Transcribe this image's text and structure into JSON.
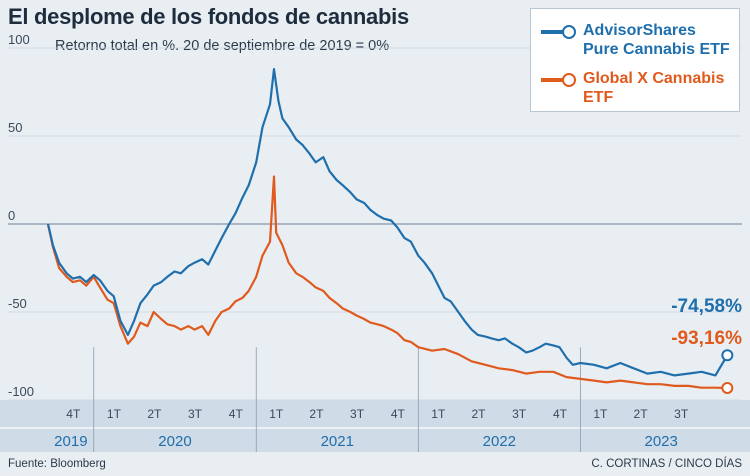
{
  "title": "El desplome de los fondos de cannabis",
  "subtitle": "Retorno total en %. 20 de septiembre de 2019 = 0%",
  "legend": {
    "series1": "AdvisorShares Pure Cannabis ETF",
    "series2": "Global X Cannabis ETF"
  },
  "end_labels": {
    "series1": "-74,58%",
    "series2": "-93,16%"
  },
  "footer": {
    "source": "Fuente: Bloomberg",
    "credit": "C. CORTINAS / CINCO DÍAS"
  },
  "colors": {
    "series1": "#1f6fad",
    "series2": "#e05a1e",
    "background": "#e9eef3",
    "axis_band": "#cfdbe6"
  },
  "chart_data": {
    "type": "line",
    "ylim": [
      -100,
      100
    ],
    "y_ticks": [
      "100",
      "50",
      "0",
      "-50",
      "-100"
    ],
    "grid": true,
    "legend_position": "top-right",
    "quarters": [
      "4T",
      "1T",
      "2T",
      "3T",
      "4T",
      "1T",
      "2T",
      "3T",
      "4T",
      "1T",
      "2T",
      "3T",
      "4T",
      "1T",
      "2T",
      "3T"
    ],
    "years": [
      "2019",
      "2020",
      "2021",
      "2022",
      "2023"
    ],
    "series": [
      {
        "name": "AdvisorShares Pure Cannabis ETF",
        "points": [
          [
            "2019-09-20",
            0
          ],
          [
            "2019-10-01",
            -12
          ],
          [
            "2019-10-15",
            -22
          ],
          [
            "2019-11-01",
            -28
          ],
          [
            "2019-11-15",
            -31
          ],
          [
            "2019-12-01",
            -30
          ],
          [
            "2019-12-15",
            -33
          ],
          [
            "2020-01-01",
            -29
          ],
          [
            "2020-01-15",
            -32
          ],
          [
            "2020-02-01",
            -38
          ],
          [
            "2020-02-15",
            -41
          ],
          [
            "2020-03-01",
            -55
          ],
          [
            "2020-03-18",
            -63
          ],
          [
            "2020-04-01",
            -55
          ],
          [
            "2020-04-15",
            -45
          ],
          [
            "2020-05-01",
            -40
          ],
          [
            "2020-05-15",
            -35
          ],
          [
            "2020-06-01",
            -33
          ],
          [
            "2020-06-15",
            -30
          ],
          [
            "2020-07-01",
            -27
          ],
          [
            "2020-07-15",
            -28
          ],
          [
            "2020-08-01",
            -24
          ],
          [
            "2020-08-15",
            -22
          ],
          [
            "2020-09-01",
            -20
          ],
          [
            "2020-09-15",
            -23
          ],
          [
            "2020-10-01",
            -15
          ],
          [
            "2020-10-15",
            -8
          ],
          [
            "2020-11-01",
            0
          ],
          [
            "2020-11-15",
            6
          ],
          [
            "2020-12-01",
            15
          ],
          [
            "2020-12-15",
            22
          ],
          [
            "2021-01-01",
            35
          ],
          [
            "2021-01-15",
            55
          ],
          [
            "2021-02-01",
            68
          ],
          [
            "2021-02-10",
            88
          ],
          [
            "2021-02-20",
            70
          ],
          [
            "2021-03-01",
            60
          ],
          [
            "2021-03-15",
            55
          ],
          [
            "2021-04-01",
            48
          ],
          [
            "2021-04-15",
            45
          ],
          [
            "2021-05-01",
            40
          ],
          [
            "2021-05-15",
            35
          ],
          [
            "2021-06-01",
            38
          ],
          [
            "2021-06-15",
            30
          ],
          [
            "2021-07-01",
            25
          ],
          [
            "2021-07-15",
            22
          ],
          [
            "2021-08-01",
            18
          ],
          [
            "2021-08-15",
            14
          ],
          [
            "2021-09-01",
            12
          ],
          [
            "2021-09-15",
            8
          ],
          [
            "2021-10-01",
            5
          ],
          [
            "2021-10-15",
            3
          ],
          [
            "2021-11-01",
            2
          ],
          [
            "2021-11-15",
            -2
          ],
          [
            "2021-12-01",
            -8
          ],
          [
            "2021-12-15",
            -10
          ],
          [
            "2022-01-01",
            -18
          ],
          [
            "2022-01-15",
            -22
          ],
          [
            "2022-02-01",
            -28
          ],
          [
            "2022-02-15",
            -35
          ],
          [
            "2022-03-01",
            -42
          ],
          [
            "2022-03-15",
            -44
          ],
          [
            "2022-04-01",
            -50
          ],
          [
            "2022-04-15",
            -55
          ],
          [
            "2022-05-01",
            -60
          ],
          [
            "2022-05-15",
            -63
          ],
          [
            "2022-06-01",
            -64
          ],
          [
            "2022-06-15",
            -65
          ],
          [
            "2022-07-01",
            -66
          ],
          [
            "2022-07-15",
            -65
          ],
          [
            "2022-08-01",
            -68
          ],
          [
            "2022-08-15",
            -70
          ],
          [
            "2022-09-01",
            -73
          ],
          [
            "2022-09-15",
            -72
          ],
          [
            "2022-10-01",
            -70
          ],
          [
            "2022-10-15",
            -68
          ],
          [
            "2022-11-01",
            -69
          ],
          [
            "2022-11-15",
            -70
          ],
          [
            "2022-12-01",
            -76
          ],
          [
            "2022-12-15",
            -80
          ],
          [
            "2023-01-01",
            -79
          ],
          [
            "2023-02-01",
            -80
          ],
          [
            "2023-03-01",
            -82
          ],
          [
            "2023-04-01",
            -79
          ],
          [
            "2023-05-01",
            -82
          ],
          [
            "2023-06-01",
            -85
          ],
          [
            "2023-07-01",
            -84
          ],
          [
            "2023-08-01",
            -86
          ],
          [
            "2023-09-01",
            -85
          ],
          [
            "2023-10-01",
            -84
          ],
          [
            "2023-11-01",
            -86
          ],
          [
            "2023-11-28",
            -74.58
          ]
        ]
      },
      {
        "name": "Global X Cannabis ETF",
        "points": [
          [
            "2019-09-20",
            0
          ],
          [
            "2019-10-01",
            -13
          ],
          [
            "2019-10-15",
            -25
          ],
          [
            "2019-11-01",
            -30
          ],
          [
            "2019-11-15",
            -33
          ],
          [
            "2019-12-01",
            -32
          ],
          [
            "2019-12-15",
            -35
          ],
          [
            "2020-01-01",
            -30
          ],
          [
            "2020-01-15",
            -36
          ],
          [
            "2020-02-01",
            -43
          ],
          [
            "2020-02-15",
            -45
          ],
          [
            "2020-03-01",
            -58
          ],
          [
            "2020-03-18",
            -68
          ],
          [
            "2020-04-01",
            -64
          ],
          [
            "2020-04-15",
            -56
          ],
          [
            "2020-05-01",
            -58
          ],
          [
            "2020-05-15",
            -50
          ],
          [
            "2020-06-01",
            -54
          ],
          [
            "2020-06-15",
            -57
          ],
          [
            "2020-07-01",
            -58
          ],
          [
            "2020-07-15",
            -60
          ],
          [
            "2020-08-01",
            -58
          ],
          [
            "2020-08-15",
            -60
          ],
          [
            "2020-09-01",
            -58
          ],
          [
            "2020-09-15",
            -63
          ],
          [
            "2020-10-01",
            -55
          ],
          [
            "2020-10-15",
            -50
          ],
          [
            "2020-11-01",
            -48
          ],
          [
            "2020-11-15",
            -44
          ],
          [
            "2020-12-01",
            -42
          ],
          [
            "2020-12-15",
            -38
          ],
          [
            "2021-01-01",
            -30
          ],
          [
            "2021-01-15",
            -18
          ],
          [
            "2021-02-01",
            -10
          ],
          [
            "2021-02-10",
            27
          ],
          [
            "2021-02-15",
            -5
          ],
          [
            "2021-03-01",
            -12
          ],
          [
            "2021-03-15",
            -22
          ],
          [
            "2021-04-01",
            -28
          ],
          [
            "2021-04-15",
            -30
          ],
          [
            "2021-05-01",
            -33
          ],
          [
            "2021-05-15",
            -36
          ],
          [
            "2021-06-01",
            -38
          ],
          [
            "2021-06-15",
            -42
          ],
          [
            "2021-07-01",
            -45
          ],
          [
            "2021-07-15",
            -48
          ],
          [
            "2021-08-01",
            -50
          ],
          [
            "2021-08-15",
            -52
          ],
          [
            "2021-09-01",
            -54
          ],
          [
            "2021-09-15",
            -56
          ],
          [
            "2021-10-01",
            -57
          ],
          [
            "2021-10-15",
            -58
          ],
          [
            "2021-11-01",
            -60
          ],
          [
            "2021-11-15",
            -62
          ],
          [
            "2021-12-01",
            -66
          ],
          [
            "2021-12-15",
            -67
          ],
          [
            "2022-01-01",
            -70
          ],
          [
            "2022-02-01",
            -72
          ],
          [
            "2022-03-01",
            -71
          ],
          [
            "2022-04-01",
            -74
          ],
          [
            "2022-05-01",
            -78
          ],
          [
            "2022-06-01",
            -80
          ],
          [
            "2022-07-01",
            -82
          ],
          [
            "2022-08-01",
            -83
          ],
          [
            "2022-09-01",
            -85
          ],
          [
            "2022-10-01",
            -84
          ],
          [
            "2022-11-01",
            -84
          ],
          [
            "2022-12-01",
            -87
          ],
          [
            "2023-01-01",
            -88
          ],
          [
            "2023-02-01",
            -89
          ],
          [
            "2023-03-01",
            -90
          ],
          [
            "2023-04-01",
            -89
          ],
          [
            "2023-05-01",
            -90
          ],
          [
            "2023-06-01",
            -91
          ],
          [
            "2023-07-01",
            -91
          ],
          [
            "2023-08-01",
            -92
          ],
          [
            "2023-09-01",
            -92
          ],
          [
            "2023-10-01",
            -93
          ],
          [
            "2023-11-01",
            -93
          ],
          [
            "2023-11-28",
            -93.16
          ]
        ]
      }
    ]
  }
}
